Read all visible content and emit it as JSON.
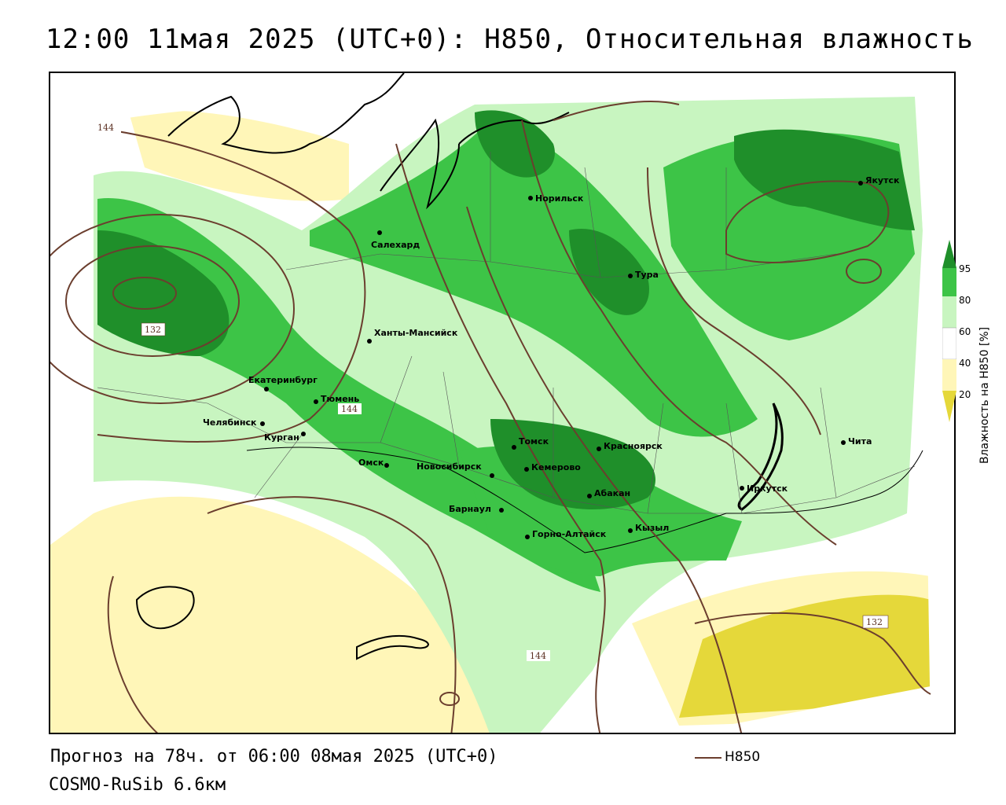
{
  "title": "12:00 11мая 2025 (UTC+0): H850, Относительная влажность",
  "footer": {
    "forecast": "Прогноз на 78ч. от 06:00 08мая 2025 (UTC+0)",
    "model": "COSMO-RuSib 6.6км",
    "legend_contour": "H850"
  },
  "colorbar": {
    "title": "Влажность на H850 [%]",
    "ticks": [
      "95",
      "80",
      "60",
      "40",
      "20"
    ],
    "colors": {
      "c95": "#1f8f2a",
      "c80": "#3dc447",
      "c60": "#c8f5c0",
      "c40": "#ffffff",
      "c20": "#fff6b8",
      "c0": "#e5d83a"
    }
  },
  "contour_color": "#6b3e2e",
  "isolines": {
    "a": "144",
    "b": "132",
    "c": "144",
    "d": "144",
    "e": "132"
  },
  "cities": {
    "norilsk": "Норильск",
    "yakutsk": "Якутск",
    "salekhard": "Салехард",
    "tura": "Тура",
    "khanty": "Ханты-Мансийск",
    "ekb": "Екатеринбург",
    "tyumen": "Тюмень",
    "chelyabinsk": "Челябинск",
    "kurgan": "Курган",
    "omsk": "Омск",
    "novosibirsk": "Новосибирск",
    "tomsk": "Томск",
    "kemerovo": "Кемерово",
    "krasnoyarsk": "Красноярск",
    "barnaul": "Барнаул",
    "abakan": "Абакан",
    "gorno": "Горно-Алтайск",
    "kyzyl": "Кызыл",
    "irkutsk": "Иркутск",
    "chita": "Чита"
  }
}
